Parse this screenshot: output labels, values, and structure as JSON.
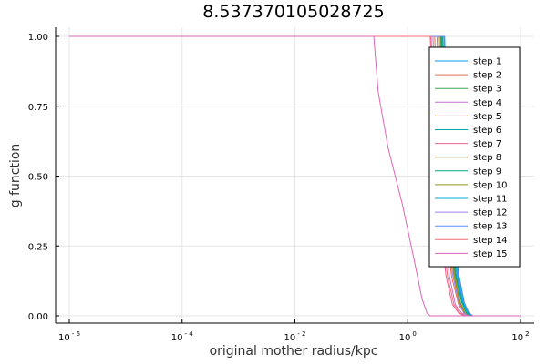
{
  "chart_data": {
    "type": "line",
    "title": "8.537370105028725",
    "xlabel": "original mother radius/kpc",
    "ylabel": "g function",
    "xscale": "log10",
    "xlim": [
      1e-06,
      100
    ],
    "ylim": [
      0,
      1
    ],
    "grid": true,
    "legend_position": "top-right",
    "x_ticks": [
      {
        "base": "10",
        "exp": "- 6",
        "value": 1e-06
      },
      {
        "base": "10",
        "exp": "- 4",
        "value": 0.0001
      },
      {
        "base": "10",
        "exp": "- 2",
        "value": 0.01
      },
      {
        "base": "10",
        "exp": "0",
        "value": 1
      },
      {
        "base": "10",
        "exp": "2",
        "value": 100
      }
    ],
    "y_ticks": [
      {
        "label": "0.00",
        "value": 0
      },
      {
        "label": "0.25",
        "value": 0.25
      },
      {
        "label": "0.50",
        "value": 0.5
      },
      {
        "label": "0.75",
        "value": 0.75
      },
      {
        "label": "1.00",
        "value": 1
      }
    ],
    "series": [
      {
        "name": "step 1",
        "color": "#009AFA",
        "points": [
          [
            1e-06,
            1
          ],
          [
            4.5,
            1
          ],
          [
            5,
            0.7
          ],
          [
            6,
            0.35
          ],
          [
            8,
            0.15
          ],
          [
            10,
            0.05
          ],
          [
            12,
            0.01
          ],
          [
            14,
            0
          ],
          [
            100,
            0
          ]
        ]
      },
      {
        "name": "step 2",
        "color": "#E36F47",
        "points": [
          [
            1e-06,
            1
          ],
          [
            3.0,
            1
          ],
          [
            3.5,
            0.7
          ],
          [
            4.5,
            0.35
          ],
          [
            6,
            0.14
          ],
          [
            8,
            0.04
          ],
          [
            10,
            0.01
          ],
          [
            12,
            0
          ],
          [
            100,
            0
          ]
        ]
      },
      {
        "name": "step 3",
        "color": "#3EA44E",
        "points": [
          [
            1e-06,
            1
          ],
          [
            4.0,
            1
          ],
          [
            4.5,
            0.7
          ],
          [
            5.5,
            0.35
          ],
          [
            7,
            0.15
          ],
          [
            9,
            0.05
          ],
          [
            11,
            0.01
          ],
          [
            13,
            0
          ],
          [
            100,
            0
          ]
        ]
      },
      {
        "name": "step 4",
        "color": "#C371D2",
        "points": [
          [
            1e-06,
            1
          ],
          [
            2.8,
            1
          ],
          [
            3.3,
            0.7
          ],
          [
            4.2,
            0.35
          ],
          [
            5.5,
            0.14
          ],
          [
            7,
            0.04
          ],
          [
            9,
            0.01
          ],
          [
            11,
            0
          ],
          [
            100,
            0
          ]
        ]
      },
      {
        "name": "step 5",
        "color": "#AC8E18",
        "points": [
          [
            1e-06,
            1
          ],
          [
            3.8,
            1
          ],
          [
            4.3,
            0.7
          ],
          [
            5.2,
            0.35
          ],
          [
            6.8,
            0.15
          ],
          [
            8.5,
            0.05
          ],
          [
            10.5,
            0.01
          ],
          [
            12.5,
            0
          ],
          [
            100,
            0
          ]
        ]
      },
      {
        "name": "step 6",
        "color": "#00AAAE",
        "points": [
          [
            1e-06,
            1
          ],
          [
            4.2,
            1
          ],
          [
            4.8,
            0.7
          ],
          [
            5.8,
            0.35
          ],
          [
            7.5,
            0.15
          ],
          [
            9.5,
            0.05
          ],
          [
            12,
            0.01
          ],
          [
            14,
            0
          ],
          [
            100,
            0
          ]
        ]
      },
      {
        "name": "step 7",
        "color": "#ED5E93",
        "points": [
          [
            1e-06,
            1
          ],
          [
            2.5,
            1
          ],
          [
            2.9,
            0.7
          ],
          [
            3.6,
            0.35
          ],
          [
            4.8,
            0.14
          ],
          [
            6.2,
            0.04
          ],
          [
            8,
            0.01
          ],
          [
            10,
            0
          ],
          [
            100,
            0
          ]
        ]
      },
      {
        "name": "step 8",
        "color": "#C68225",
        "points": [
          [
            1e-06,
            1
          ],
          [
            3.5,
            1
          ],
          [
            4.0,
            0.7
          ],
          [
            5.0,
            0.35
          ],
          [
            6.5,
            0.15
          ],
          [
            8.2,
            0.05
          ],
          [
            10,
            0.01
          ],
          [
            12,
            0
          ],
          [
            100,
            0
          ]
        ]
      },
      {
        "name": "step 9",
        "color": "#00A98D",
        "points": [
          [
            1e-06,
            1
          ],
          [
            3.9,
            1
          ],
          [
            4.4,
            0.7
          ],
          [
            5.4,
            0.35
          ],
          [
            7,
            0.15
          ],
          [
            9,
            0.05
          ],
          [
            11,
            0.01
          ],
          [
            13,
            0
          ],
          [
            100,
            0
          ]
        ]
      },
      {
        "name": "step 10",
        "color": "#8E971D",
        "points": [
          [
            1e-06,
            1
          ],
          [
            3.6,
            1
          ],
          [
            4.1,
            0.7
          ],
          [
            5.1,
            0.35
          ],
          [
            6.6,
            0.15
          ],
          [
            8.4,
            0.05
          ],
          [
            10.2,
            0.01
          ],
          [
            12.2,
            0
          ],
          [
            100,
            0
          ]
        ]
      },
      {
        "name": "step 11",
        "color": "#00A9CD",
        "points": [
          [
            1e-06,
            1
          ],
          [
            4.1,
            1
          ],
          [
            4.6,
            0.7
          ],
          [
            5.6,
            0.35
          ],
          [
            7.2,
            0.15
          ],
          [
            9.2,
            0.05
          ],
          [
            11.5,
            0.01
          ],
          [
            13.5,
            0
          ],
          [
            100,
            0
          ]
        ]
      },
      {
        "name": "step 12",
        "color": "#9B7FE9",
        "points": [
          [
            1e-06,
            1
          ],
          [
            3.3,
            1
          ],
          [
            3.8,
            0.7
          ],
          [
            4.8,
            0.35
          ],
          [
            6.2,
            0.15
          ],
          [
            8,
            0.05
          ],
          [
            9.8,
            0.01
          ],
          [
            11.8,
            0
          ],
          [
            100,
            0
          ]
        ]
      },
      {
        "name": "step 13",
        "color": "#618DF6",
        "points": [
          [
            1e-06,
            1
          ],
          [
            4.4,
            1
          ],
          [
            5.0,
            0.7
          ],
          [
            6.0,
            0.35
          ],
          [
            7.8,
            0.15
          ],
          [
            9.8,
            0.05
          ],
          [
            12.2,
            0.01
          ],
          [
            14.5,
            0
          ],
          [
            100,
            0
          ]
        ]
      },
      {
        "name": "step 14",
        "color": "#F16D71",
        "points": [
          [
            1e-06,
            1
          ],
          [
            2.6,
            1
          ],
          [
            3.1,
            0.7
          ],
          [
            3.9,
            0.35
          ],
          [
            5.1,
            0.14
          ],
          [
            6.6,
            0.04
          ],
          [
            8.4,
            0.01
          ],
          [
            10.4,
            0
          ],
          [
            100,
            0
          ]
        ]
      },
      {
        "name": "step 15",
        "color": "#DD64B5",
        "points": [
          [
            1e-06,
            1
          ],
          [
            0.25,
            1
          ],
          [
            0.3,
            0.8
          ],
          [
            0.45,
            0.6
          ],
          [
            0.8,
            0.4
          ],
          [
            1.3,
            0.2
          ],
          [
            1.8,
            0.06
          ],
          [
            2.2,
            0.01
          ],
          [
            2.5,
            0
          ],
          [
            100,
            0
          ]
        ]
      }
    ]
  }
}
